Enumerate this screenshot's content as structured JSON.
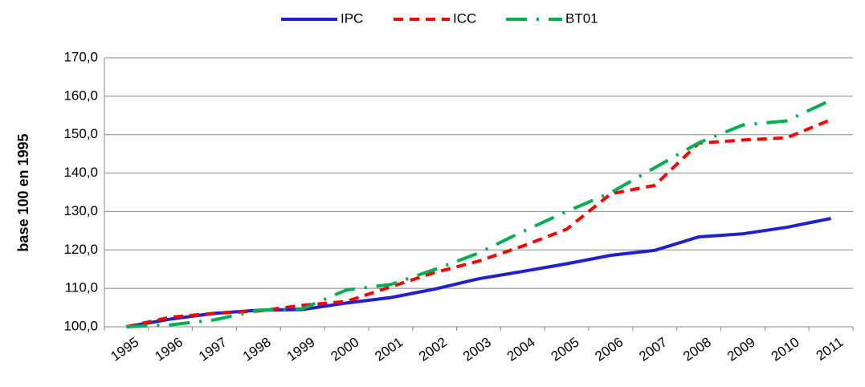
{
  "chart_data": {
    "type": "line",
    "y_label": "base 100 en 1995",
    "categories": [
      "1995",
      "1996",
      "1997",
      "1998",
      "1999",
      "2000",
      "2001",
      "2002",
      "2003",
      "2004",
      "2005",
      "2006",
      "2007",
      "2008",
      "2009",
      "2010",
      "2011"
    ],
    "series": [
      {
        "name": "IPC",
        "color": "#1f1fd8",
        "dash": "solid",
        "values": [
          100,
          102,
          103.5,
          104.3,
          104.5,
          106.2,
          107.6,
          109.8,
          112.5,
          114.4,
          116.4,
          118.6,
          119.9,
          123.4,
          124.2,
          125.9,
          128.2
        ]
      },
      {
        "name": "ICC",
        "color": "#ff0000",
        "dash": "dashed",
        "values": [
          100,
          102.5,
          103.5,
          104.1,
          105.6,
          106.6,
          110.4,
          114.1,
          117.1,
          121.0,
          125.4,
          134.6,
          136.8,
          147.8,
          148.6,
          149.2,
          153.9
        ]
      },
      {
        "name": "BT01",
        "color": "#00b050",
        "dash": "dashdot",
        "values": [
          100,
          100.5,
          101.8,
          104.3,
          104.7,
          109.6,
          111.0,
          114.9,
          119.2,
          124.8,
          130.0,
          134.9,
          141.4,
          147.9,
          152.5,
          153.6,
          159.0
        ]
      }
    ],
    "ylim": [
      100,
      170
    ],
    "yticks": [
      {
        "value": 100,
        "label": "100,0"
      },
      {
        "value": 110,
        "label": "110,0"
      },
      {
        "value": 120,
        "label": "120,0"
      },
      {
        "value": 130,
        "label": "130,0"
      },
      {
        "value": 140,
        "label": "140,0"
      },
      {
        "value": 150,
        "label": "150,0"
      },
      {
        "value": 160,
        "label": "160,0"
      },
      {
        "value": 170,
        "label": "170,0"
      }
    ],
    "grid": true,
    "legend": "top"
  }
}
